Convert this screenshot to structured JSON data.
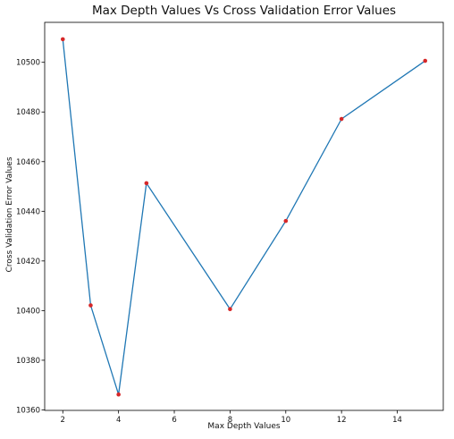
{
  "chart_data": {
    "type": "line",
    "title": "Max Depth Values Vs Cross Validation Error Values",
    "xlabel": "Max Depth Values",
    "ylabel": "Cross Validation Error Values",
    "x": [
      2,
      3,
      4,
      5,
      8,
      10,
      12,
      15
    ],
    "series": [
      {
        "values": [
          10509.3,
          10402.1,
          10366.2,
          10451.3,
          10400.6,
          10436.1,
          10477.2,
          10500.6
        ],
        "line_color": "#1f77b4",
        "marker_color": "#d62728"
      }
    ],
    "xlim": [
      1.35,
      15.65
    ],
    "ylim": [
      10359.8,
      10516.1
    ],
    "xticks": [
      2,
      4,
      6,
      8,
      10,
      12,
      14
    ],
    "yticks": [
      10360,
      10380,
      10400,
      10420,
      10440,
      10460,
      10480,
      10500
    ],
    "grid": false,
    "legend": "none"
  }
}
